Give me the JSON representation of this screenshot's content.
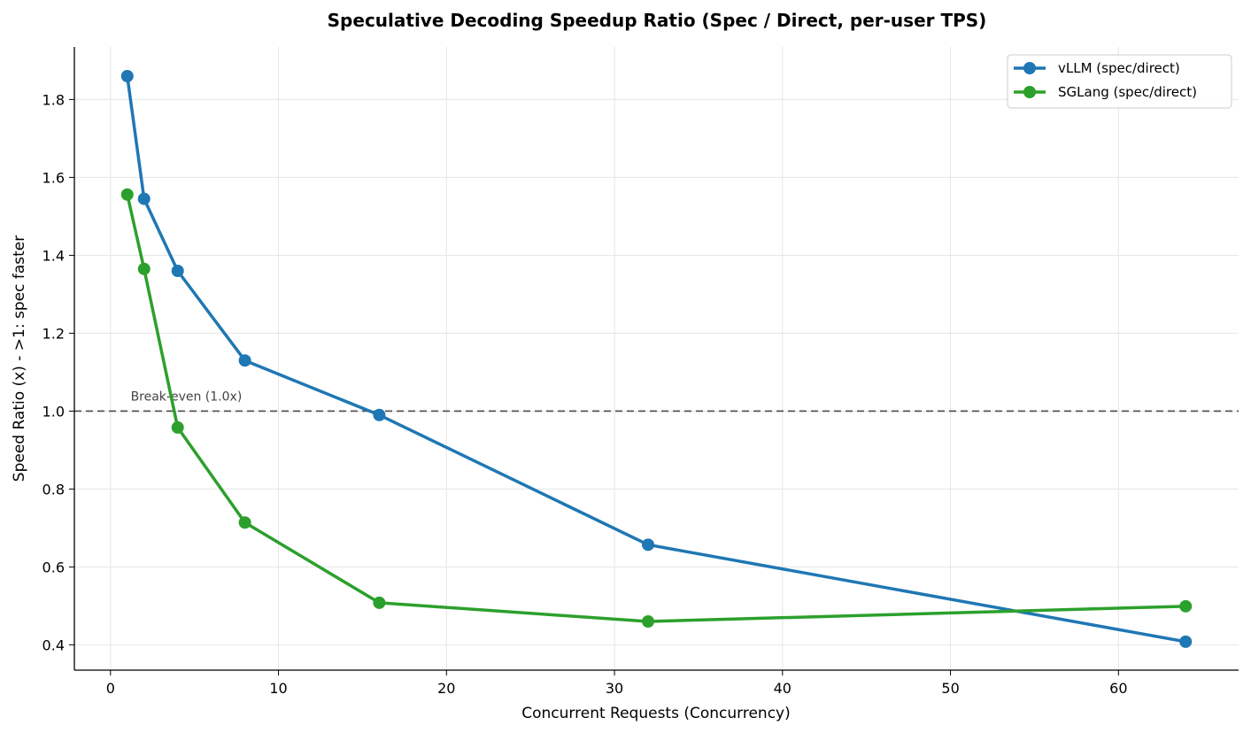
{
  "chart_data": {
    "type": "line",
    "title": "Speculative Decoding Speedup Ratio (Spec / Direct, per-user TPS)",
    "xlabel": "Concurrent Requests (Concurrency)",
    "ylabel": "Speed Ratio (x)  -  >1: spec faster",
    "x": [
      1,
      2,
      4,
      8,
      16,
      32,
      64
    ],
    "xlim": [
      -2.15,
      67.15
    ],
    "ylim": [
      0.335,
      1.935
    ],
    "xticks": [
      0,
      10,
      20,
      30,
      40,
      50,
      60
    ],
    "yticks": [
      0.4,
      0.6,
      0.8,
      1.0,
      1.2,
      1.4,
      1.6,
      1.8
    ],
    "xtick_labels": [
      "0",
      "10",
      "20",
      "30",
      "40",
      "50",
      "60"
    ],
    "ytick_labels": [
      "0.4",
      "0.6",
      "0.8",
      "1.0",
      "1.2",
      "1.4",
      "1.6",
      "1.8"
    ],
    "grid": true,
    "legend_position": "top-right",
    "series": [
      {
        "name": "vLLM (spec/direct)",
        "color": "#1f77b4",
        "values": [
          1.86,
          1.545,
          1.36,
          1.13,
          0.99,
          0.657,
          0.408
        ]
      },
      {
        "name": "SGLang (spec/direct)",
        "color": "#2ca02c",
        "values": [
          1.556,
          1.365,
          0.958,
          0.714,
          0.508,
          0.46,
          0.499
        ]
      }
    ],
    "reference_line": {
      "y": 1.0,
      "label": "Break-even (1.0x)",
      "color": "#555555"
    }
  }
}
